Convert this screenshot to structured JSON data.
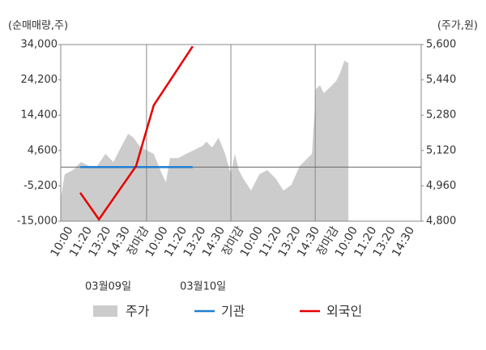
{
  "chart_data": {
    "type": "stock-flow",
    "y_label": "(순매매량,주)",
    "y2_label": "(주가,원)",
    "categories": [
      "10:00",
      "11:20",
      "13:20",
      "14:30",
      "장마감",
      "10:00",
      "11:20",
      "13:20",
      "14:30",
      "장마감",
      "10:00",
      "11:20",
      "13:20",
      "14:30",
      "장마감",
      "10:00",
      "11:20",
      "13:20",
      "14:30"
    ],
    "category_colors": [
      "#333",
      "#333",
      "#333",
      "#333",
      "#e60000",
      "#333",
      "#333",
      "#333",
      "#333",
      "#e60000",
      "#333",
      "#333",
      "#333",
      "#333",
      "#e60000",
      "#000",
      "#333",
      "#333",
      "#333"
    ],
    "dates": [
      "03월09일",
      "03월10일"
    ],
    "xlim": [
      0,
      100
    ],
    "x_gridlines": [
      23.8,
      47.2,
      70.6
    ],
    "ylim": [
      -15000,
      34000
    ],
    "yticks": [
      {
        "value": -15000,
        "label": "-15,000"
      },
      {
        "value": -5200,
        "label": "-5,200"
      },
      {
        "value": 4600,
        "label": "4,600"
      },
      {
        "value": 14400,
        "label": "14,400"
      },
      {
        "value": 24200,
        "label": "24,200"
      },
      {
        "value": 34000,
        "label": "34,000"
      }
    ],
    "y2lim": [
      4800,
      5600
    ],
    "y2ticks": [
      {
        "value": 4800,
        "label": "4,800"
      },
      {
        "value": 4960,
        "label": "4,960"
      },
      {
        "value": 5120,
        "label": "5,120"
      },
      {
        "value": 5280,
        "label": "5,280"
      },
      {
        "value": 5440,
        "label": "5,440"
      },
      {
        "value": 5600,
        "label": "5,600"
      }
    ],
    "series": [
      {
        "name": "주가",
        "color": "#cccccc",
        "kind": "area",
        "axis": "y2",
        "x": [
          0,
          1.1,
          3.4,
          5.6,
          7.9,
          10.1,
          12.4,
          14.6,
          16.9,
          18.7,
          20.2,
          21.8,
          23.6,
          25.8,
          28.1,
          29.2,
          30.3,
          32.6,
          34.8,
          37.1,
          39.3,
          40.4,
          42.0,
          43.8,
          45.6,
          47.2,
          48.3,
          49.4,
          50.6,
          52.8,
          55.1,
          57.3,
          59.6,
          61.8,
          64.0,
          66.3,
          68.5,
          69.7,
          70.8,
          71.9,
          73.0,
          75.3,
          76.4,
          77.5,
          78.7,
          79.8
        ],
        "values": [
          4903,
          5013,
          5031,
          5068,
          5050,
          5050,
          5105,
          5068,
          5141,
          5196,
          5178,
          5141,
          5123,
          5105,
          5013,
          4976,
          5086,
          5086,
          5105,
          5123,
          5141,
          5160,
          5134,
          5178,
          5105,
          5013,
          5105,
          5031,
          4994,
          4939,
          5013,
          5031,
          4994,
          4939,
          4965,
          5050,
          5086,
          5105,
          5398,
          5416,
          5380,
          5416,
          5435,
          5471,
          5527,
          5516
        ]
      },
      {
        "name": "기관",
        "color": "#1f7fd0",
        "kind": "line",
        "x": [
          5.4,
          36.6
        ],
        "values": [
          0,
          0
        ]
      },
      {
        "name": "외국인",
        "color": "#e60000",
        "kind": "line",
        "x": [
          5.4,
          10.6,
          20.9,
          25.8,
          36.6
        ],
        "values": [
          -7100,
          -14500,
          300,
          17150,
          33500
        ]
      }
    ]
  }
}
